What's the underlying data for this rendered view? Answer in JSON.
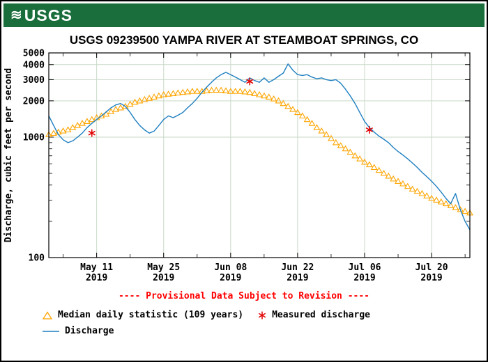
{
  "header": {
    "logo_text": "USGS"
  },
  "title": "USGS 09239500 YAMPA RIVER AT STEAMBOAT SPRINGS, CO",
  "provisional": "---- Provisional Data Subject to Revision ----",
  "legend": {
    "median_label": "Median daily statistic (109 years)",
    "measured_label": "Measured discharge",
    "discharge_label": "Discharge"
  },
  "colors": {
    "header_green": "#1a6e3c",
    "discharge_blue": "#1e7fc1",
    "median_orange": "#FFA500",
    "measured_red": "#e00000",
    "provisional_red": "#ff0000",
    "grid": "#c9d9c9",
    "frame": "#000000"
  },
  "chart_data": {
    "type": "line",
    "title": "USGS 09239500 YAMPA RIVER AT STEAMBOAT SPRINGS, CO",
    "xlabel": "",
    "ylabel": "Discharge, cubic feet per second",
    "yscale": "log",
    "ylim": [
      100,
      5000
    ],
    "yticks": [
      100,
      1000,
      2000,
      3000,
      4000,
      5000
    ],
    "x_domain_days": [
      0,
      88
    ],
    "xticks": [
      {
        "day": 10,
        "label": "May 11",
        "year": "2019"
      },
      {
        "day": 24,
        "label": "May 25",
        "year": "2019"
      },
      {
        "day": 38,
        "label": "Jun 08",
        "year": "2019"
      },
      {
        "day": 52,
        "label": "Jun 22",
        "year": "2019"
      },
      {
        "day": 66,
        "label": "Jul 06",
        "year": "2019"
      },
      {
        "day": 80,
        "label": "Jul 20",
        "year": "2019"
      }
    ],
    "grid": true,
    "legend_position": "bottom-left",
    "series": [
      {
        "name": "Discharge",
        "type": "line",
        "color": "#1e7fc1",
        "values": [
          1500,
          1250,
          1050,
          950,
          900,
          930,
          1000,
          1080,
          1200,
          1300,
          1400,
          1500,
          1620,
          1750,
          1850,
          1900,
          1800,
          1600,
          1400,
          1250,
          1150,
          1080,
          1120,
          1250,
          1400,
          1500,
          1450,
          1520,
          1600,
          1750,
          1900,
          2100,
          2350,
          2600,
          2850,
          3100,
          3300,
          3450,
          3300,
          3150,
          3000,
          2850,
          3100,
          2950,
          2850,
          3100,
          2850,
          3000,
          3200,
          3400,
          4050,
          3600,
          3300,
          3250,
          3300,
          3150,
          3050,
          3100,
          3000,
          2950,
          3000,
          2800,
          2500,
          2200,
          1900,
          1600,
          1350,
          1200,
          1100,
          1020,
          960,
          900,
          820,
          760,
          710,
          660,
          610,
          560,
          510,
          470,
          430,
          390,
          350,
          310,
          280,
          340,
          250,
          200,
          170
        ]
      },
      {
        "name": "Median daily statistic (109 years)",
        "type": "triangle-markers",
        "color": "#FFA500",
        "values": [
          1050,
          1075,
          1100,
          1125,
          1150,
          1200,
          1250,
          1300,
          1350,
          1400,
          1450,
          1500,
          1550,
          1625,
          1700,
          1750,
          1800,
          1875,
          1950,
          2000,
          2050,
          2100,
          2150,
          2200,
          2250,
          2275,
          2300,
          2325,
          2350,
          2375,
          2400,
          2400,
          2400,
          2425,
          2450,
          2450,
          2450,
          2425,
          2400,
          2400,
          2400,
          2375,
          2350,
          2300,
          2250,
          2200,
          2150,
          2075,
          2000,
          1900,
          1800,
          1700,
          1600,
          1500,
          1400,
          1300,
          1200,
          1125,
          1050,
          975,
          900,
          850,
          800,
          750,
          700,
          660,
          620,
          590,
          560,
          530,
          500,
          475,
          450,
          430,
          410,
          390,
          370,
          355,
          340,
          325,
          310,
          300,
          290,
          280,
          270,
          260,
          250,
          242,
          235
        ]
      },
      {
        "name": "Measured discharge",
        "type": "asterisk-markers",
        "color": "#e00000",
        "points": [
          {
            "day": 9,
            "value": 1080
          },
          {
            "day": 42,
            "value": 2900
          },
          {
            "day": 67,
            "value": 1150
          }
        ]
      }
    ]
  }
}
